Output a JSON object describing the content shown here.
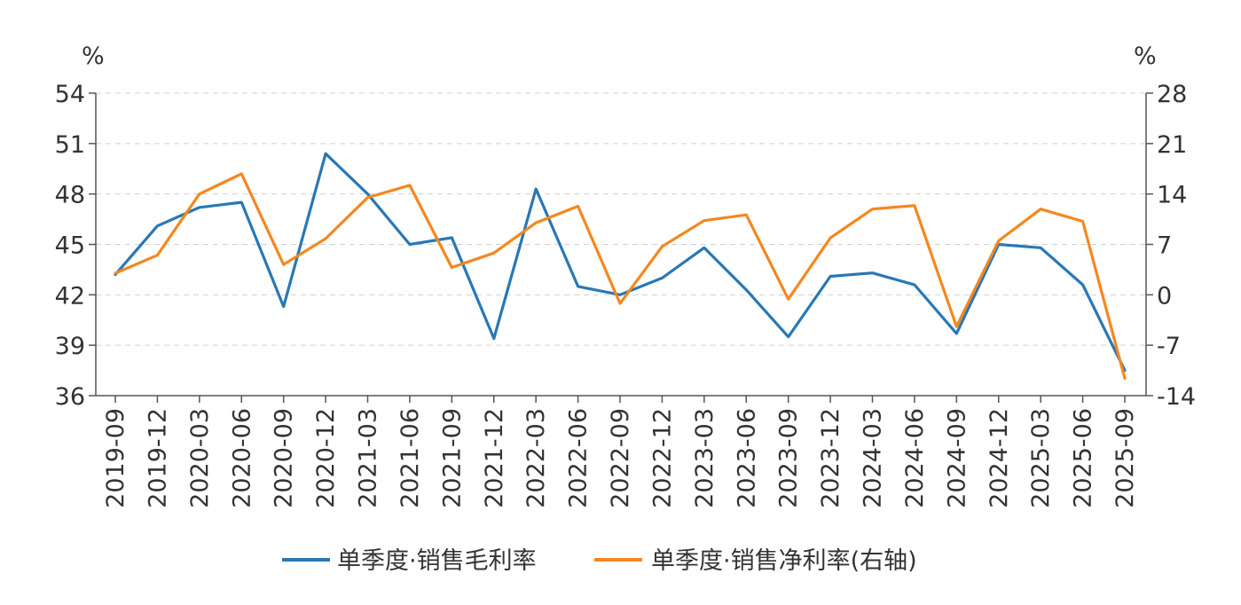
{
  "chart_data": {
    "type": "line",
    "categories": [
      "2019-09",
      "2019-12",
      "2020-03",
      "2020-06",
      "2020-09",
      "2020-12",
      "2021-03",
      "2021-06",
      "2021-09",
      "2021-12",
      "2022-03",
      "2022-06",
      "2022-09",
      "2022-12",
      "2023-03",
      "2023-06",
      "2023-09",
      "2023-12",
      "2024-03",
      "2024-06",
      "2024-09",
      "2024-12",
      "2025-03",
      "2025-06",
      "2025-09"
    ],
    "left_axis": {
      "unit": "%",
      "min": 36,
      "max": 54,
      "ticks": [
        "54",
        "51",
        "48",
        "45",
        "42",
        "39",
        "36"
      ]
    },
    "right_axis": {
      "unit": "%",
      "min": -14,
      "max": 28,
      "ticks": [
        "28",
        "21",
        "14",
        "7",
        "0",
        "-7",
        "-14"
      ]
    },
    "series": [
      {
        "name": "单季度·销售毛利率",
        "axis": "left",
        "color": "#2878b5",
        "values": [
          43.2,
          46.1,
          47.2,
          47.5,
          41.3,
          50.4,
          48.0,
          45.0,
          45.4,
          39.4,
          48.3,
          42.5,
          42.0,
          43.0,
          44.8,
          42.3,
          39.5,
          43.1,
          43.3,
          42.6,
          39.7,
          45.0,
          44.8,
          42.6,
          37.5
        ]
      },
      {
        "name": "单季度·销售净利率(右轴)",
        "axis": "right",
        "color": "#f5871f",
        "values": [
          3.0,
          5.5,
          14.0,
          16.8,
          4.2,
          7.8,
          13.5,
          15.2,
          3.8,
          5.8,
          10.0,
          12.3,
          -1.2,
          6.7,
          10.3,
          11.1,
          -0.6,
          7.9,
          11.9,
          12.4,
          -4.4,
          7.5,
          11.9,
          10.2,
          -11.6
        ]
      }
    ],
    "grid": true,
    "legend_position": "bottom"
  }
}
